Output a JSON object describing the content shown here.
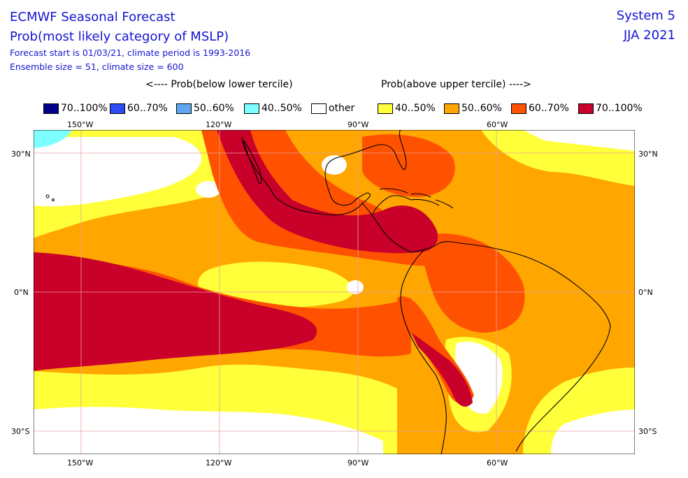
{
  "header": {
    "title_line1": "ECMWF Seasonal Forecast",
    "title_line2": "Prob(most likely category of MSLP)",
    "info_line1": "Forecast start is 01/03/21, climate period is 1993-2016",
    "info_line2": "Ensemble size = 51, climate size = 600",
    "system": "System 5",
    "season": "JJA 2021"
  },
  "legend": {
    "below_header": "<---- Prob(below lower tercile)",
    "above_header": "Prob(above upper tercile) ---->",
    "items": [
      {
        "label": "70..100%",
        "color": "#00008c"
      },
      {
        "label": "60..70%",
        "color": "#2e4cf2"
      },
      {
        "label": "50..60%",
        "color": "#5fa6f2"
      },
      {
        "label": "40..50%",
        "color": "#7effff"
      },
      {
        "label": "other",
        "color": "#ffffff"
      },
      {
        "label": "40..50%",
        "color": "#ffff3a"
      },
      {
        "label": "50..60%",
        "color": "#ffa600"
      },
      {
        "label": "60..70%",
        "color": "#ff5200"
      },
      {
        "label": "70..100%",
        "color": "#c9002a"
      }
    ]
  },
  "map": {
    "lon_labels": [
      "150°W",
      "120°W",
      "90°W",
      "60°W"
    ],
    "lat_labels": [
      "30°N",
      "0°N",
      "30°S"
    ]
  }
}
